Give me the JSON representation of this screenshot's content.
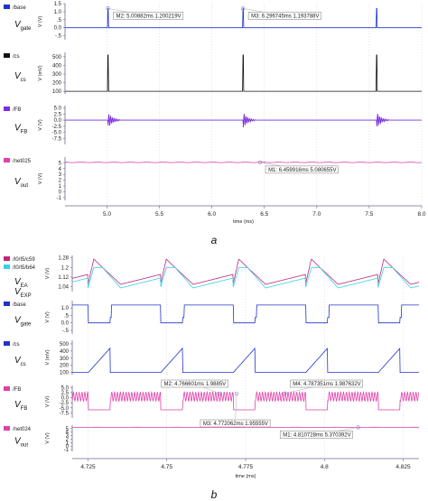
{
  "colors": {
    "blue": "#2233cc",
    "black": "#111111",
    "purple": "#7a2ee0",
    "pink": "#e040a8",
    "cyan": "#38d0e8",
    "magenta": "#c0287a",
    "axis": "#6a6a8c",
    "grid": "#c8c8d8"
  },
  "captions": {
    "a": "a",
    "b": "b"
  },
  "chart_data": [
    {
      "type": "line",
      "id": "a",
      "xlabel": "time (ms)",
      "xlim": [
        4.6,
        8.0
      ],
      "xticks": [
        "5.0",
        "5.5",
        "6.0",
        "6.5",
        "7.0",
        "7.5",
        "8.0"
      ],
      "xtick_values": [
        5.0,
        5.5,
        6.0,
        6.5,
        7.0,
        7.5,
        8.0
      ],
      "panels": [
        {
          "id": "a1",
          "legend": "/base",
          "label_main": "V",
          "label_sub": "gate",
          "ylabel": "V (V)",
          "ylim": [
            -0.75,
            1.5
          ],
          "yticks": [
            "1.5",
            "1.0",
            ".5",
            "0.0",
            "-.5"
          ],
          "ytick_values": [
            1.5,
            1.0,
            0.5,
            0.0,
            -0.5
          ],
          "series": [
            {
              "color_key": "blue",
              "baseline": 0.0,
              "pulse_peak": 1.2,
              "pulse_times": [
                5.0088,
                6.2967,
                7.57
              ]
            }
          ],
          "markers": [
            {
              "text": "M2: 5.00882ms 1.200219V",
              "x": 5.0088,
              "y": 1.2002
            },
            {
              "text": "M3: 6.296745ms 1.193788V",
              "x": 6.2967,
              "y": 1.1938
            }
          ]
        },
        {
          "id": "a2",
          "legend": "/cs",
          "label_main": "V",
          "label_sub": "cs",
          "ylabel": "V (mV)",
          "ylim": [
            70,
            550
          ],
          "yticks": [
            "500",
            "400",
            "300",
            "200",
            "100"
          ],
          "ytick_values": [
            500,
            400,
            300,
            200,
            100
          ],
          "series": [
            {
              "color_key": "black",
              "baseline": 100,
              "pulse_peak": 520,
              "pulse_times": [
                5.0088,
                6.2967,
                7.57
              ]
            }
          ],
          "markers": []
        },
        {
          "id": "a3",
          "legend": "/FB",
          "label_main": "V",
          "label_sub": "FB",
          "ylabel": "V (V)",
          "ylim": [
            -10.0,
            6.0
          ],
          "yticks": [
            "5.0",
            "2.5",
            "0.0",
            "-2.5",
            "-5.0",
            "-7.5"
          ],
          "ytick_values": [
            5.0,
            2.5,
            0.0,
            -2.5,
            -5.0,
            -7.5
          ],
          "series": [
            {
              "color_key": "purple",
              "baseline": 0.0,
              "burst_amplitude": 3.5,
              "burst_times": [
                5.0088,
                6.2967,
                7.57
              ]
            }
          ],
          "markers": []
        },
        {
          "id": "a4",
          "legend": "/net025",
          "label_main": "V",
          "label_sub": "out",
          "ylabel": "V (V)",
          "ylim": [
            -1.5,
            6.0
          ],
          "yticks": [
            "5",
            "4",
            "3",
            "2",
            "1",
            "0",
            "-1"
          ],
          "ytick_values": [
            5,
            4,
            3,
            2,
            1,
            0,
            -1
          ],
          "series": [
            {
              "color_key": "pink",
              "baseline": 5.08,
              "ripple": 0.04
            }
          ],
          "markers": [
            {
              "text": "M1: 6.459916ms 5.080655V",
              "x": 6.4599,
              "y": 5.0807
            }
          ]
        }
      ]
    },
    {
      "type": "line",
      "id": "b",
      "xlabel": "time (ms)",
      "xlim": [
        4.72,
        4.83
      ],
      "xticks": [
        "4.725",
        "4.75",
        "4.775",
        "4.8",
        "4.825"
      ],
      "xtick_values": [
        4.725,
        4.75,
        4.775,
        4.8,
        4.825
      ],
      "panels": [
        {
          "id": "b1",
          "legend": "/I0/I5/c59",
          "legend2": "/I0/I5/b64",
          "label_main": "V",
          "label_sub": "EA",
          "label2_main": "V",
          "label2_sub": "EXP",
          "ylabel": "V (V)",
          "ylim": [
            1.0,
            1.3
          ],
          "yticks": [
            "1.28",
            "1.2",
            "1.12",
            "1.04"
          ],
          "ytick_values": [
            1.28,
            1.2,
            1.12,
            1.04
          ],
          "series": [
            {
              "color_key": "magenta",
              "ramp_low": 1.06,
              "ramp_high": 1.2,
              "spike": 1.27,
              "period": 0.023,
              "start": 4.725
            },
            {
              "color_key": "cyan",
              "ramp_low": 1.03,
              "ramp_high": 1.2,
              "spike": 1.2,
              "period": 0.023,
              "start": 4.725
            }
          ],
          "markers": []
        },
        {
          "id": "b2",
          "legend": "/base",
          "label_main": "V",
          "label_sub": "gate",
          "ylabel": "V (V)",
          "ylim": [
            -0.75,
            1.5
          ],
          "yticks": [
            "1.0",
            ".5",
            "0.0",
            "-.5"
          ],
          "ytick_values": [
            1.0,
            0.5,
            0.0,
            -0.5
          ],
          "series": [
            {
              "color_key": "blue",
              "high": 1.2,
              "low": 0.0,
              "period": 0.023,
              "start": 4.7251,
              "duty": 0.3
            }
          ],
          "markers": []
        },
        {
          "id": "b3",
          "legend": "/cs",
          "label_main": "V",
          "label_sub": "cs",
          "ylabel": "V (mV)",
          "ylim": [
            70,
            550
          ],
          "yticks": [
            "500",
            "400",
            "300",
            "200",
            "100"
          ],
          "ytick_values": [
            500,
            400,
            300,
            200,
            100
          ],
          "series": [
            {
              "color_key": "blue",
              "baseline": 100,
              "peak": 440,
              "period": 0.023,
              "start": 4.7251,
              "duty": 0.3
            }
          ],
          "markers": []
        },
        {
          "id": "b4",
          "legend": "/FB",
          "label_main": "V",
          "label_sub": "FB",
          "ylabel": "V (V)",
          "ylim": [
            -10.0,
            6.0
          ],
          "yticks": [
            "5.0",
            "2.5",
            "0.0",
            "-2.5",
            "-5.0",
            "-7.5"
          ],
          "ytick_values": [
            5.0,
            2.5,
            0.0,
            -2.5,
            -5.0,
            -7.5
          ],
          "series": [
            {
              "color_key": "pink",
              "high": 2.0,
              "low": -6.0,
              "osc_amp": 2.2,
              "period": 0.023,
              "start": 4.7251,
              "duty": 0.3
            }
          ],
          "markers": [
            {
              "text": "M2: 4.766601ms 1.9885V",
              "x": 4.7666,
              "y": 1.9885
            },
            {
              "text": "M4: 4.787351ms 1.987632V",
              "x": 4.7874,
              "y": 1.9876
            },
            {
              "text": "M3: 4.772062ms 1.95555V",
              "x": 4.7721,
              "y": 1.9556
            }
          ]
        },
        {
          "id": "b5",
          "legend": "/net024",
          "label_main": "V",
          "label_sub": "out",
          "ylabel": "V (V)",
          "ylim": [
            -1.5,
            6.0
          ],
          "yticks": [
            "5",
            "4",
            "3",
            "2",
            "1",
            "0",
            "-1"
          ],
          "ytick_values": [
            5,
            4,
            3,
            2,
            1,
            0,
            -1
          ],
          "series": [
            {
              "color_key": "pink",
              "baseline": 5.37,
              "ripple": 0.03
            }
          ],
          "markers": [
            {
              "text": "M1: 4.810728ms 5.370392V",
              "x": 4.8107,
              "y": 5.3704
            }
          ]
        }
      ]
    }
  ]
}
